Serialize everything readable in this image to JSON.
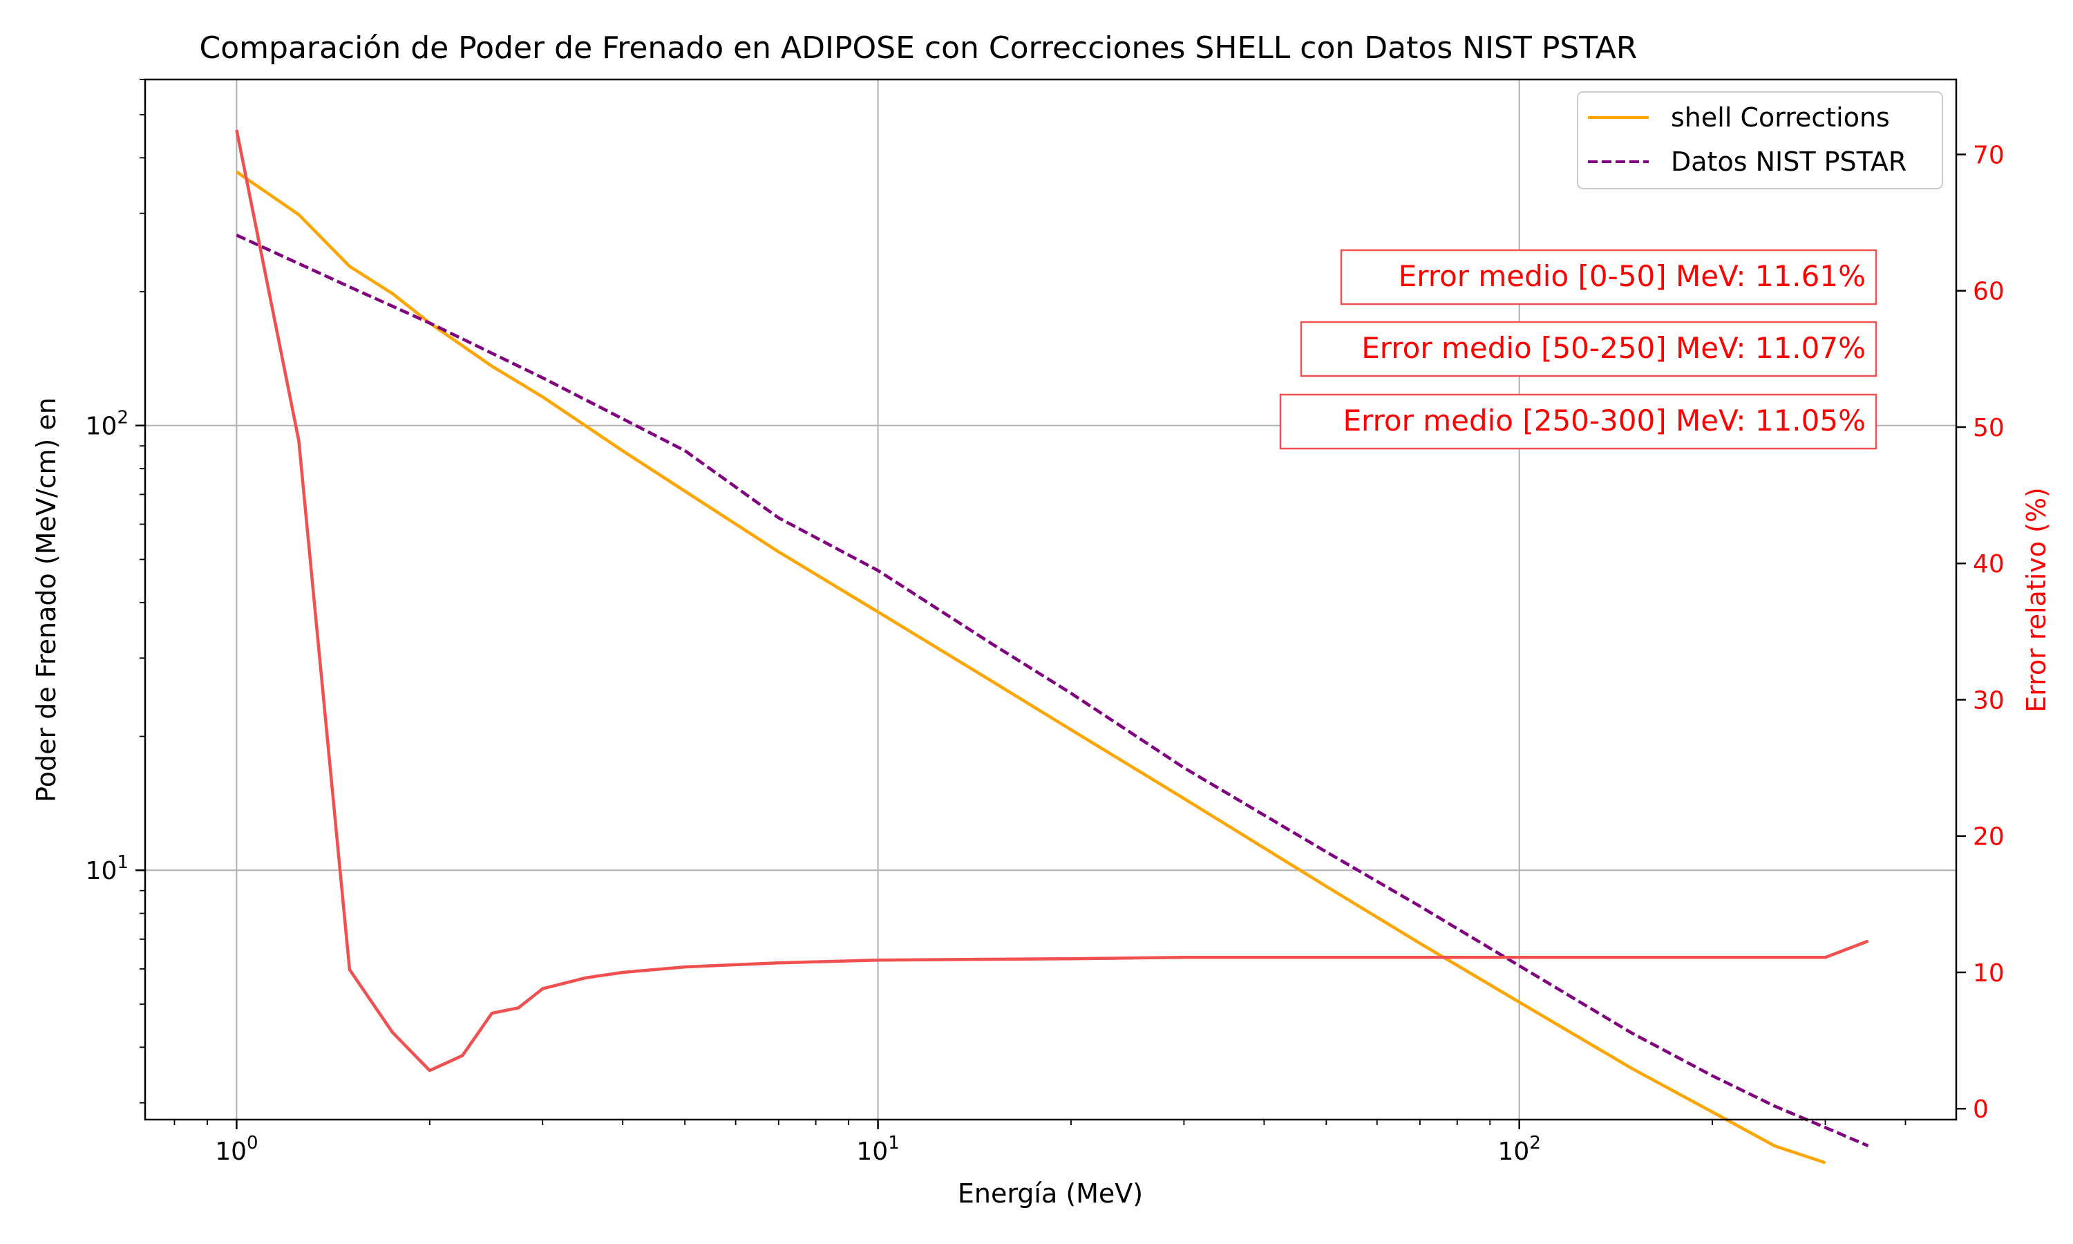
{
  "chart_data": {
    "type": "line",
    "title": "Comparación de Poder de Frenado en ADIPOSE con Correcciones SHELL con Datos NIST PSTAR",
    "xlabel": "Energía (MeV)",
    "ylabel": "Poder de Frenado (MeV/cm) en",
    "ylabel_right": "Error relativo (%)",
    "xscale": "log",
    "yscale": "log",
    "xlim": [
      0.72,
      480
    ],
    "ylim": [
      2.75,
      600
    ],
    "ylim_right": [
      -0.8,
      75.5
    ],
    "grid": true,
    "legend_position": "top-right",
    "x_ticks": [
      {
        "value": 1,
        "base": "10",
        "exp": "0"
      },
      {
        "value": 10,
        "base": "10",
        "exp": "1"
      },
      {
        "value": 100,
        "base": "10",
        "exp": "2"
      }
    ],
    "y_ticks": [
      {
        "value": 10,
        "base": "10",
        "exp": "1"
      },
      {
        "value": 100,
        "base": "10",
        "exp": "2"
      }
    ],
    "y_right_ticks": [
      "0",
      "10",
      "20",
      "30",
      "40",
      "50",
      "60",
      "70"
    ],
    "series": [
      {
        "name": "shell Corrections",
        "axis": "left",
        "color": "#ffa500",
        "style": "solid",
        "x": [
          1.0,
          1.25,
          1.5,
          1.75,
          2.0,
          2.5,
          3.0,
          4.0,
          5.0,
          7.0,
          10,
          15,
          20,
          30,
          50,
          70,
          100,
          150,
          200,
          250,
          300
        ],
        "y": [
          372,
          298,
          228,
          198,
          170,
          136,
          116,
          87.7,
          71.2,
          52.0,
          38.1,
          26.7,
          20.7,
          14.5,
          9.2,
          6.85,
          5.05,
          3.58,
          2.86,
          2.4,
          2.2
        ]
      },
      {
        "name": "Datos NIST PSTAR",
        "axis": "left",
        "color": "#800080",
        "style": "dashed",
        "x": [
          1.0,
          1.5,
          2.0,
          3.0,
          5.0,
          7.0,
          10,
          15,
          20,
          30,
          50,
          70,
          100,
          150,
          200,
          250,
          300,
          350
        ],
        "y": [
          268,
          205,
          170,
          128,
          87.8,
          62.0,
          47.2,
          32.4,
          25.0,
          17.0,
          11.0,
          8.3,
          6.1,
          4.3,
          3.45,
          2.95,
          2.64,
          2.4
        ]
      },
      {
        "name": "",
        "axis": "right",
        "color": "#f05050",
        "style": "solid",
        "x": [
          1.0,
          1.25,
          1.5,
          1.75,
          2.0,
          2.25,
          2.5,
          2.75,
          3.0,
          3.5,
          4.0,
          5.0,
          7.0,
          10,
          20,
          30,
          50,
          100,
          200,
          300,
          350
        ],
        "y": [
          71.8,
          49.0,
          10.2,
          5.6,
          2.8,
          3.9,
          7.0,
          7.4,
          8.8,
          9.6,
          10.0,
          10.4,
          10.7,
          10.9,
          11.0,
          11.1,
          11.1,
          11.1,
          11.1,
          11.1,
          12.3
        ]
      }
    ],
    "annotations": [
      "Error medio [0-50] MeV: 11.61%",
      "Error medio [50-250] MeV: 11.07%",
      "Error medio [250-300] MeV: 11.05%"
    ]
  }
}
